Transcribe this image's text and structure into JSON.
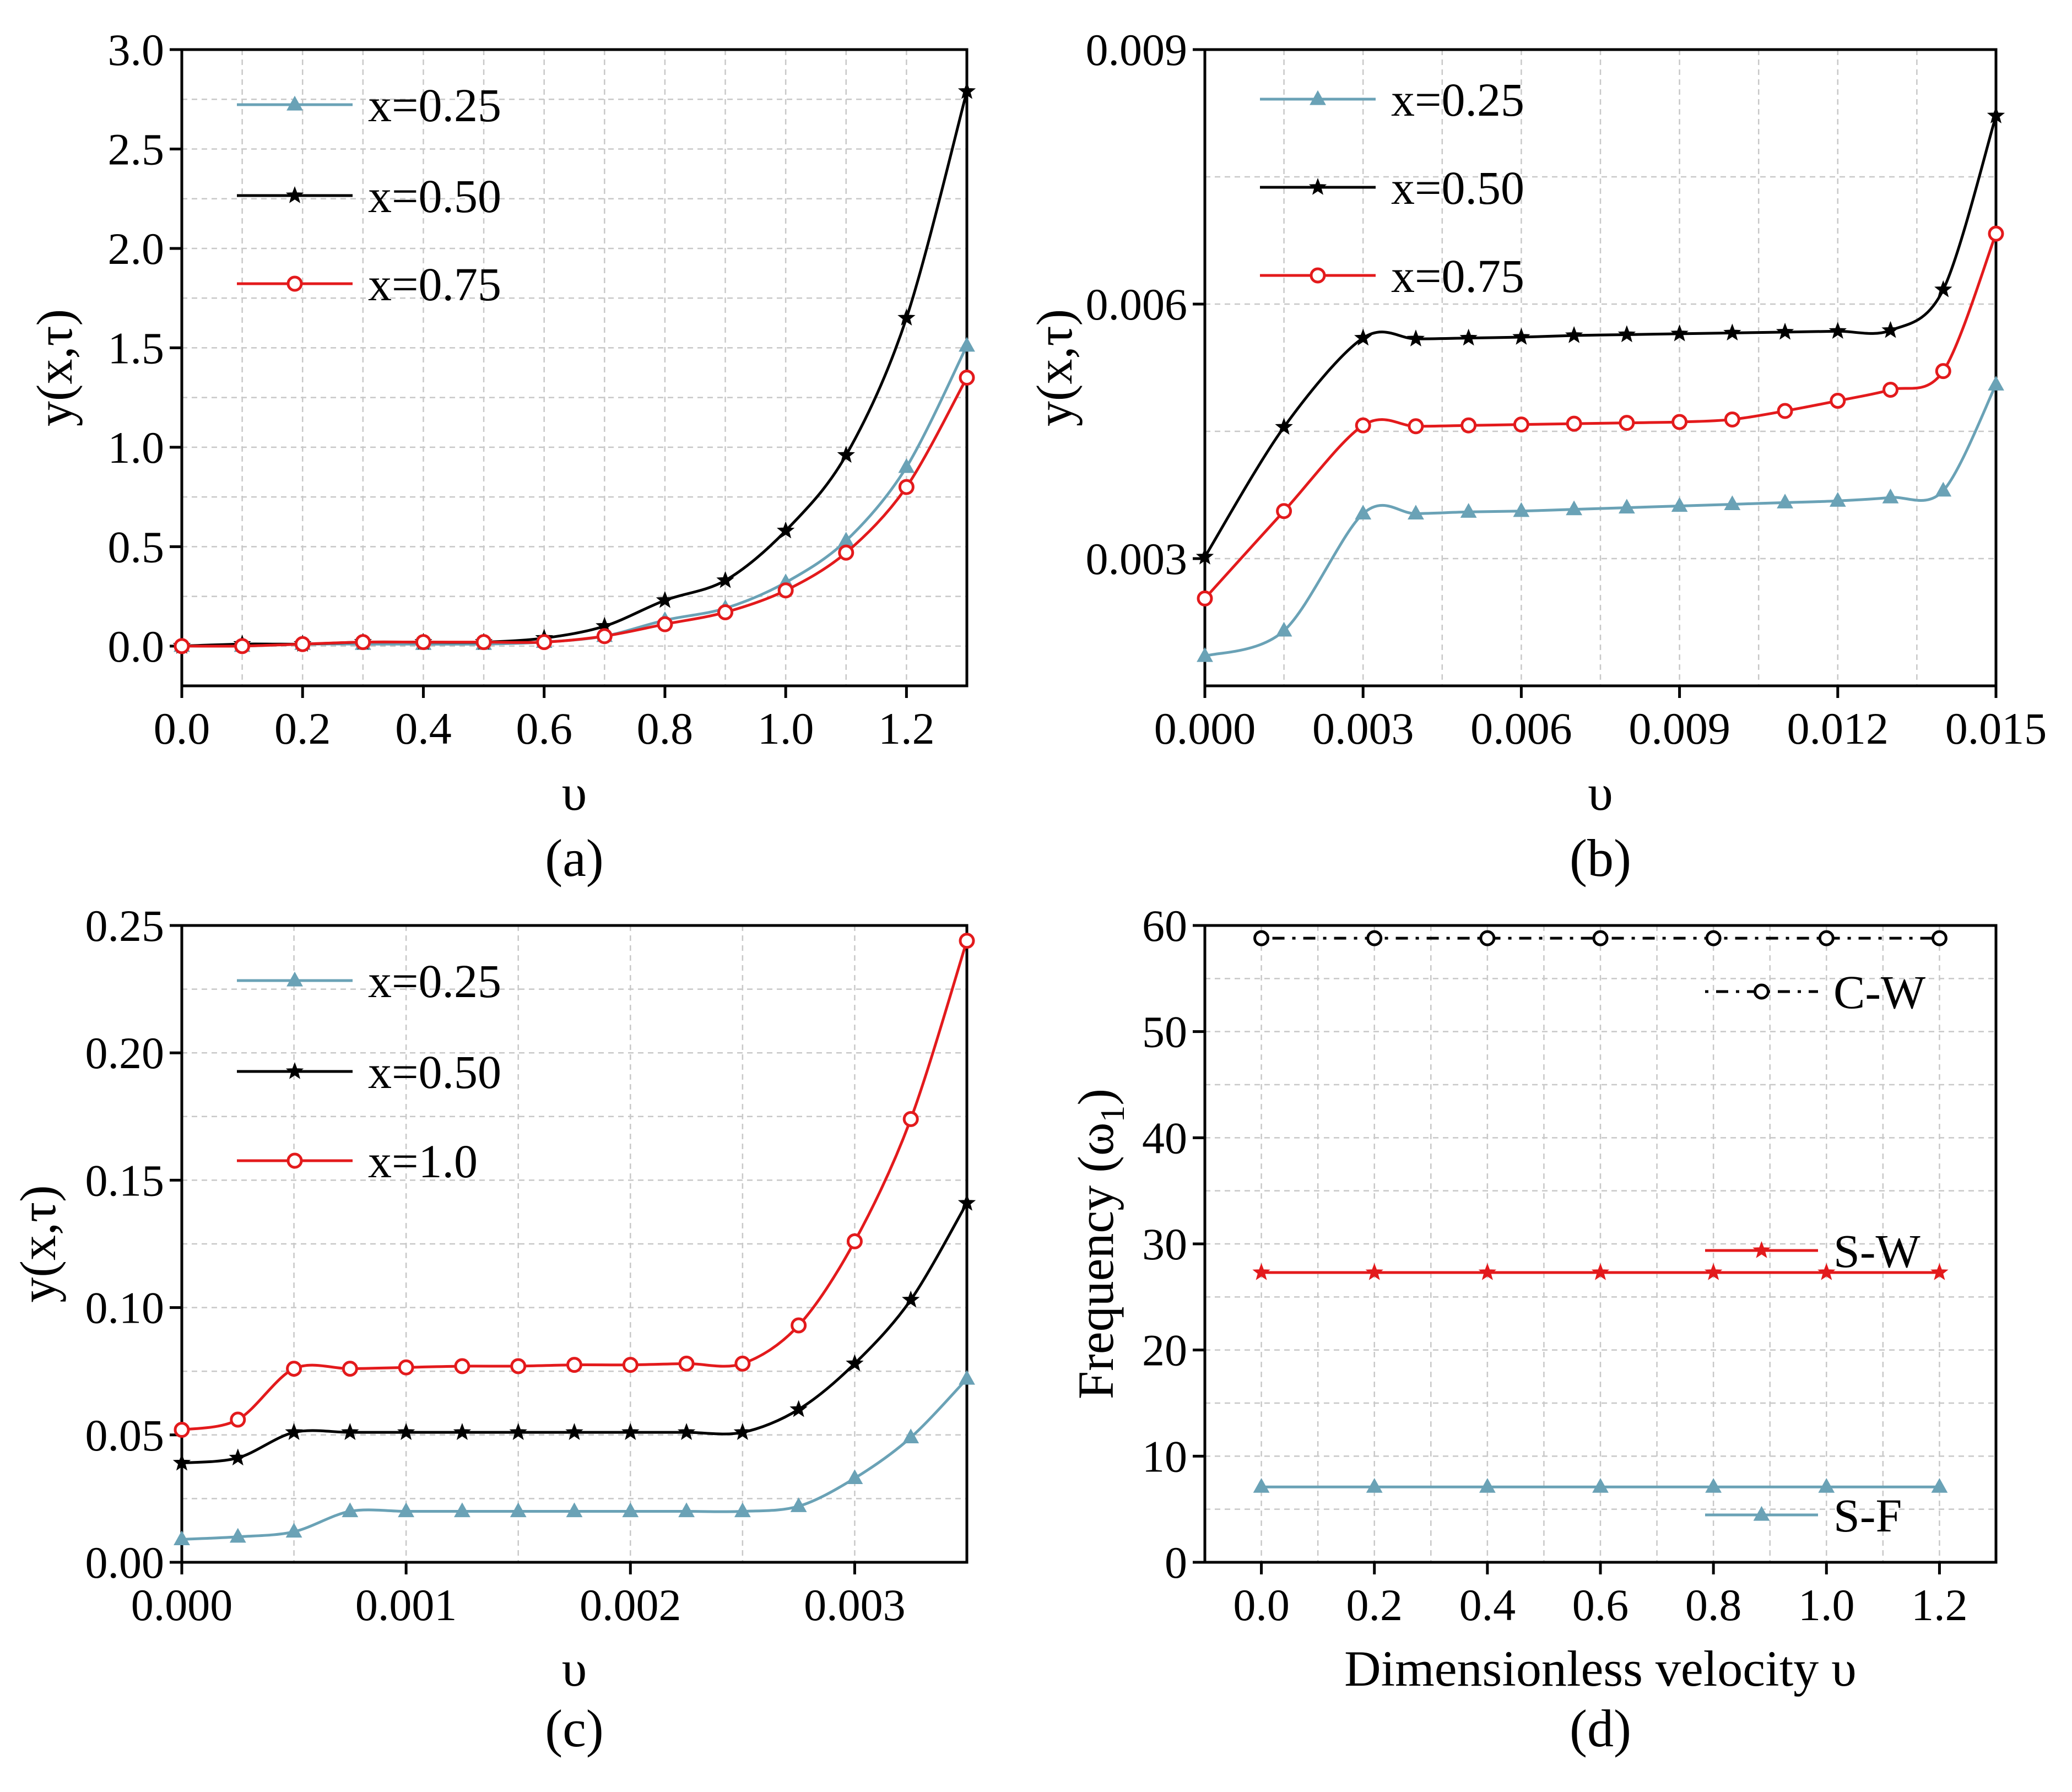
{
  "figure": {
    "colors": {
      "teal": "#6aa2b6",
      "black": "#000000",
      "red": "#e31a1c"
    }
  },
  "chart_data": [
    {
      "id": "a",
      "type": "line",
      "caption": "(a)",
      "xlabel": "υ",
      "ylabel": "y(x,τ)",
      "xlim": [
        0,
        1.3
      ],
      "ylim": [
        -0.2,
        3.0
      ],
      "xticks": [
        0,
        0.2,
        0.4,
        0.6,
        0.8,
        1.0,
        1.2
      ],
      "xtick_labels": [
        "0.0",
        "0.2",
        "0.4",
        "0.6",
        "0.8",
        "1.0",
        "1.2"
      ],
      "yticks": [
        0,
        0.5,
        1.0,
        1.5,
        2.0,
        2.5,
        3.0
      ],
      "ytick_labels": [
        "0.0",
        "0.5",
        "1.0",
        "1.5",
        "2.0",
        "2.5",
        "3.0"
      ],
      "legend_position": "top-left",
      "series": [
        {
          "name": "x=0.25",
          "color": "#6aa2b6",
          "marker": "triangle",
          "x": [
            0,
            0.1,
            0.2,
            0.3,
            0.4,
            0.5,
            0.6,
            0.7,
            0.8,
            0.9,
            1.0,
            1.1,
            1.2,
            1.3
          ],
          "y": [
            0.0,
            0.0,
            0.01,
            0.01,
            0.01,
            0.01,
            0.02,
            0.05,
            0.13,
            0.19,
            0.32,
            0.53,
            0.9,
            1.51
          ]
        },
        {
          "name": "x=0.50",
          "color": "#000000",
          "marker": "star",
          "x": [
            0,
            0.1,
            0.2,
            0.3,
            0.4,
            0.5,
            0.6,
            0.7,
            0.8,
            0.9,
            1.0,
            1.1,
            1.2,
            1.3
          ],
          "y": [
            0.0,
            0.01,
            0.01,
            0.02,
            0.02,
            0.02,
            0.04,
            0.1,
            0.23,
            0.33,
            0.58,
            0.96,
            1.65,
            2.79
          ]
        },
        {
          "name": "x=0.75",
          "color": "#e31a1c",
          "marker": "circle",
          "x": [
            0,
            0.1,
            0.2,
            0.3,
            0.4,
            0.5,
            0.6,
            0.7,
            0.8,
            0.9,
            1.0,
            1.1,
            1.2,
            1.3
          ],
          "y": [
            0.0,
            0.0,
            0.01,
            0.02,
            0.02,
            0.02,
            0.02,
            0.05,
            0.11,
            0.17,
            0.28,
            0.47,
            0.8,
            1.35
          ]
        }
      ]
    },
    {
      "id": "b",
      "type": "line",
      "caption": "(b)",
      "xlabel": "υ",
      "ylabel": "y(x,τ)",
      "xlim": [
        0,
        0.015
      ],
      "ylim": [
        0.0015,
        0.009
      ],
      "xticks": [
        0,
        0.003,
        0.006,
        0.009,
        0.012,
        0.015
      ],
      "xtick_labels": [
        "0.000",
        "0.003",
        "0.006",
        "0.009",
        "0.012",
        "0.015"
      ],
      "yticks": [
        0.003,
        0.006,
        0.009
      ],
      "ytick_labels": [
        "0.003",
        "0.006",
        "0.009"
      ],
      "legend_position": "top-left",
      "series": [
        {
          "name": "x=0.25",
          "color": "#6aa2b6",
          "marker": "triangle",
          "x": [
            0,
            0.0015,
            0.003,
            0.004,
            0.005,
            0.006,
            0.007,
            0.008,
            0.009,
            0.01,
            0.011,
            0.012,
            0.013,
            0.014,
            0.015
          ],
          "y": [
            0.00185,
            0.00215,
            0.00353,
            0.00353,
            0.00355,
            0.00356,
            0.00358,
            0.0036,
            0.00362,
            0.00364,
            0.00366,
            0.00368,
            0.00372,
            0.0038,
            0.00505
          ]
        },
        {
          "name": "x=0.50",
          "color": "#000000",
          "marker": "star",
          "x": [
            0,
            0.0015,
            0.003,
            0.004,
            0.005,
            0.006,
            0.007,
            0.008,
            0.009,
            0.01,
            0.011,
            0.012,
            0.013,
            0.014,
            0.015
          ],
          "y": [
            0.00302,
            0.00455,
            0.0056,
            0.00559,
            0.0056,
            0.00561,
            0.00563,
            0.00564,
            0.00565,
            0.00566,
            0.00567,
            0.00568,
            0.00569,
            0.00617,
            0.00822
          ]
        },
        {
          "name": "x=0.75",
          "color": "#e31a1c",
          "marker": "circle",
          "x": [
            0,
            0.0015,
            0.003,
            0.004,
            0.005,
            0.006,
            0.007,
            0.008,
            0.009,
            0.01,
            0.011,
            0.012,
            0.013,
            0.014,
            0.015
          ],
          "y": [
            0.00253,
            0.00356,
            0.00457,
            0.00456,
            0.00457,
            0.00458,
            0.00459,
            0.0046,
            0.00461,
            0.00464,
            0.00474,
            0.00486,
            0.00499,
            0.00521,
            0.00683
          ]
        }
      ]
    },
    {
      "id": "c",
      "type": "line",
      "caption": "(c)",
      "xlabel": "υ",
      "ylabel": "y(x,τ)",
      "xlim": [
        0,
        0.0035
      ],
      "ylim": [
        0,
        0.25
      ],
      "xticks": [
        0,
        0.001,
        0.002,
        0.003
      ],
      "xtick_labels": [
        "0.000",
        "0.001",
        "0.002",
        "0.003"
      ],
      "yticks": [
        0,
        0.05,
        0.1,
        0.15,
        0.2,
        0.25
      ],
      "ytick_labels": [
        "0.00",
        "0.05",
        "0.10",
        "0.15",
        "0.20",
        "0.25"
      ],
      "legend_position": "top-left",
      "series": [
        {
          "name": "x=0.25",
          "color": "#6aa2b6",
          "marker": "triangle",
          "x": [
            0,
            0.00025,
            0.0005,
            0.00075,
            0.001,
            0.00125,
            0.0015,
            0.00175,
            0.002,
            0.00225,
            0.0025,
            0.00275,
            0.003,
            0.00325,
            0.0035
          ],
          "y": [
            0.009,
            0.01,
            0.012,
            0.02,
            0.02,
            0.02,
            0.02,
            0.02,
            0.02,
            0.02,
            0.02,
            0.022,
            0.033,
            0.049,
            0.072
          ]
        },
        {
          "name": "x=0.50",
          "color": "#000000",
          "marker": "star",
          "x": [
            0,
            0.00025,
            0.0005,
            0.00075,
            0.001,
            0.00125,
            0.0015,
            0.00175,
            0.002,
            0.00225,
            0.0025,
            0.00275,
            0.003,
            0.00325,
            0.0035
          ],
          "y": [
            0.039,
            0.041,
            0.051,
            0.051,
            0.051,
            0.051,
            0.051,
            0.051,
            0.051,
            0.051,
            0.051,
            0.06,
            0.078,
            0.103,
            0.141
          ]
        },
        {
          "name": "x=1.0",
          "color": "#e31a1c",
          "marker": "circle",
          "x": [
            0,
            0.00025,
            0.0005,
            0.00075,
            0.001,
            0.00125,
            0.0015,
            0.00175,
            0.002,
            0.00225,
            0.0025,
            0.00275,
            0.003,
            0.00325,
            0.0035
          ],
          "y": [
            0.052,
            0.056,
            0.076,
            0.076,
            0.0765,
            0.077,
            0.077,
            0.0775,
            0.0775,
            0.078,
            0.078,
            0.093,
            0.126,
            0.174,
            0.244
          ]
        }
      ]
    },
    {
      "id": "d",
      "type": "line",
      "caption": "(d)",
      "xlabel": "Dimensionless velocity υ",
      "ylabel": "Frequency (ω",
      "ylabel_sub": "1",
      "ylabel_end": ")",
      "xlim": [
        -0.1,
        1.3
      ],
      "ylim": [
        0,
        60
      ],
      "xticks": [
        0,
        0.2,
        0.4,
        0.6,
        0.8,
        1.0,
        1.2
      ],
      "xtick_labels": [
        "0.0",
        "0.2",
        "0.4",
        "0.6",
        "0.8",
        "1.0",
        "1.2"
      ],
      "yticks": [
        0,
        10,
        20,
        30,
        40,
        50,
        60
      ],
      "ytick_labels": [
        "0",
        "10",
        "20",
        "30",
        "40",
        "50",
        "60"
      ],
      "legend_position": "inline-right",
      "series": [
        {
          "name": "C-W",
          "color": "#000000",
          "marker": "circle",
          "dash": "dashdot",
          "x": [
            0,
            0.2,
            0.4,
            0.6,
            0.8,
            1.0,
            1.2
          ],
          "y": [
            58.8,
            58.8,
            58.8,
            58.8,
            58.8,
            58.8,
            58.8
          ]
        },
        {
          "name": "S-W",
          "color": "#e31a1c",
          "marker": "star",
          "x": [
            0,
            0.2,
            0.4,
            0.6,
            0.8,
            1.0,
            1.2
          ],
          "y": [
            27.3,
            27.3,
            27.3,
            27.3,
            27.3,
            27.3,
            27.3
          ]
        },
        {
          "name": "S-F",
          "color": "#6aa2b6",
          "marker": "triangle",
          "x": [
            0,
            0.2,
            0.4,
            0.6,
            0.8,
            1.0,
            1.2
          ],
          "y": [
            7.1,
            7.1,
            7.1,
            7.1,
            7.1,
            7.1,
            7.1
          ]
        }
      ]
    }
  ]
}
